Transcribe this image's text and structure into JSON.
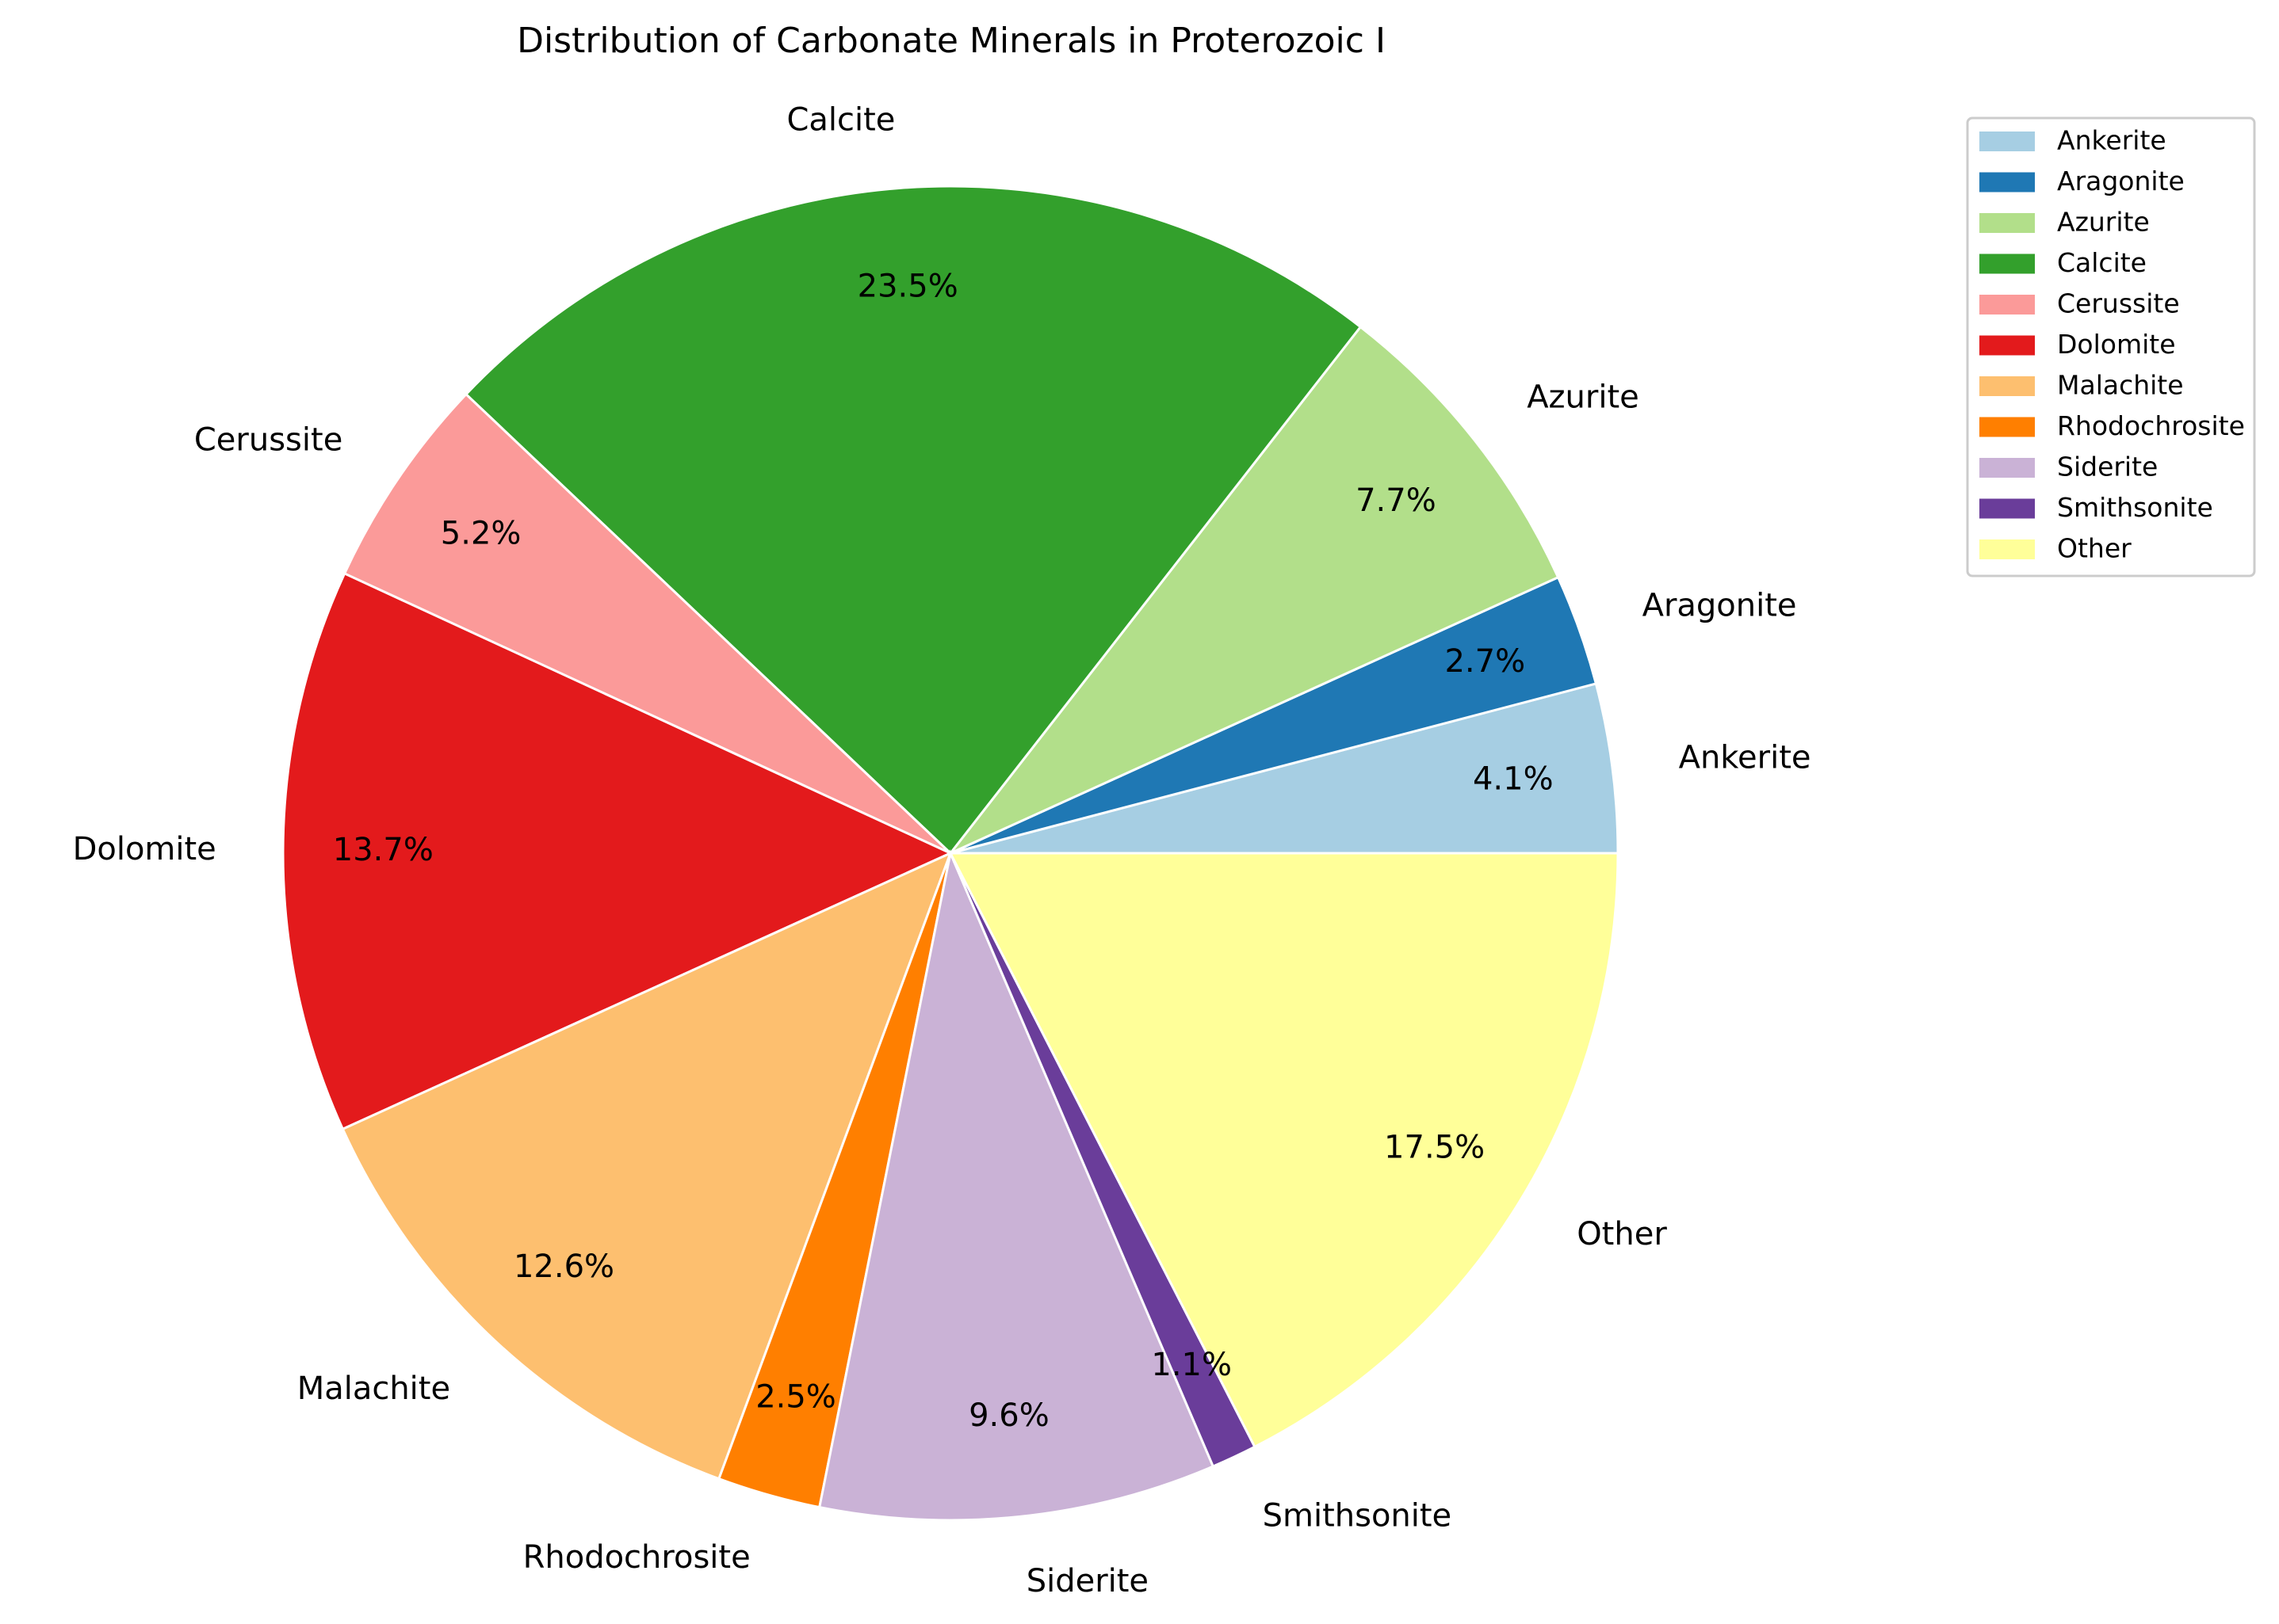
{
  "chart_data": {
    "type": "pie",
    "title": "Distribution of Carbonate Minerals in Proterozoic I",
    "categories": [
      "Ankerite",
      "Aragonite",
      "Azurite",
      "Calcite",
      "Cerussite",
      "Dolomite",
      "Malachite",
      "Rhodochrosite",
      "Siderite",
      "Smithsonite",
      "Other"
    ],
    "values": [
      4.1,
      2.7,
      7.7,
      23.5,
      5.2,
      13.7,
      12.6,
      2.5,
      9.6,
      1.1,
      17.5
    ],
    "pct_labels": [
      "4.1%",
      "2.7%",
      "7.7%",
      "23.5%",
      "5.2%",
      "13.7%",
      "12.6%",
      "2.5%",
      "9.6%",
      "1.1%",
      "17.5%"
    ],
    "colors": [
      "#a6cee3",
      "#1f78b4",
      "#b2df8a",
      "#33a02c",
      "#fb9a99",
      "#e31a1c",
      "#fdbf6f",
      "#ff7f00",
      "#cab2d6",
      "#6a3d9a",
      "#ffff99"
    ],
    "start_angle_deg": 0,
    "direction": "counterclockwise",
    "legend_position": "top-right",
    "slice_edge_color": "#ffffff"
  }
}
